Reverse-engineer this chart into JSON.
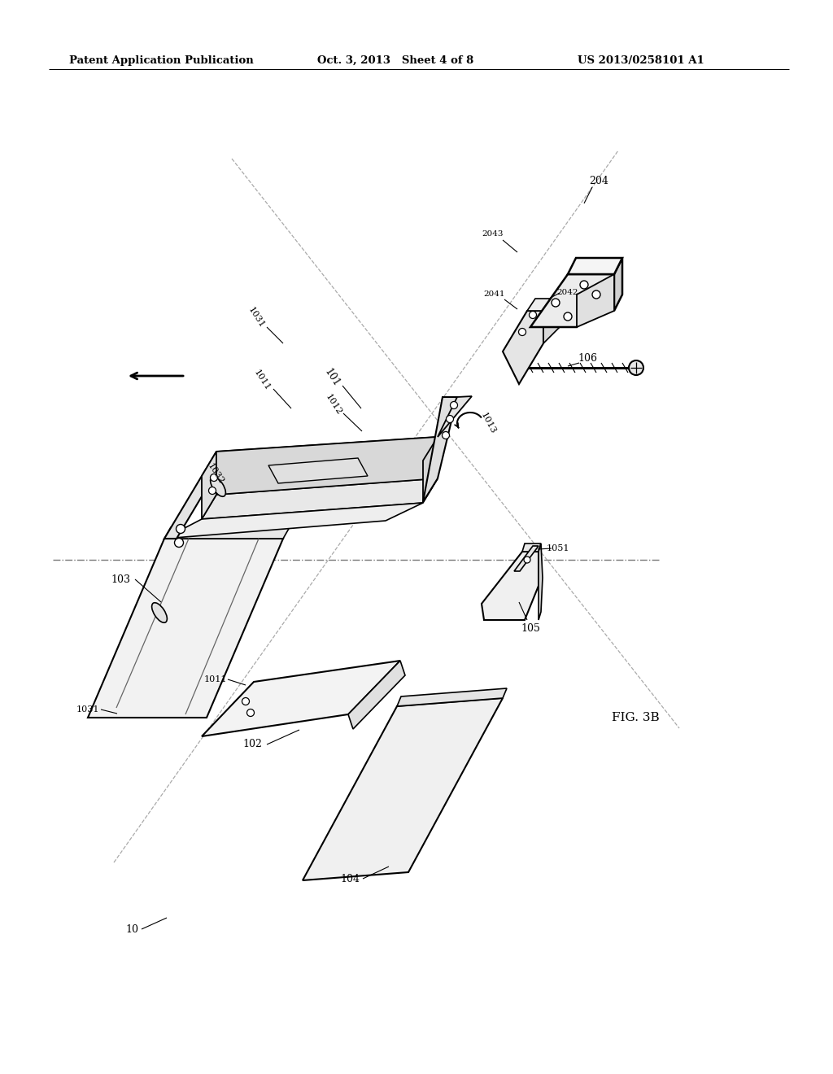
{
  "bg": "#ffffff",
  "lc": "#000000",
  "header_left": "Patent Application Publication",
  "header_mid": "Oct. 3, 2013   Sheet 4 of 8",
  "header_right": "US 2013/0258101 A1",
  "fig_caption": "FIG. 3B",
  "fc_light": "#f5f5f5",
  "fc_mid": "#e8e8e8",
  "fc_dark": "#d5d5d5",
  "fc_white": "#ffffff"
}
